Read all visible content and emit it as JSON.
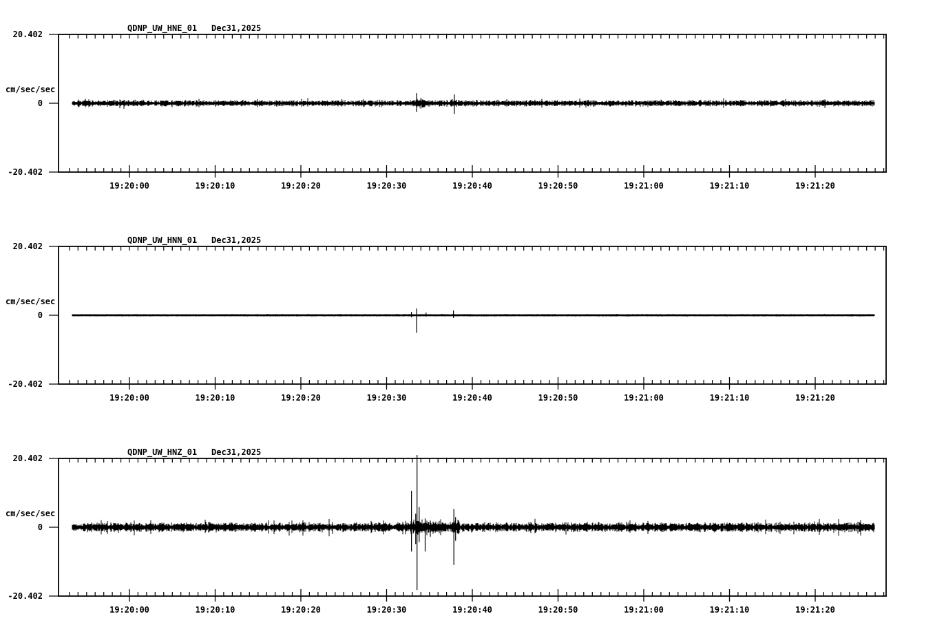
{
  "app": {
    "background": "#ffffff",
    "ink": "#000000"
  },
  "chart_data": {
    "type": "line",
    "kind": "seismogram-traces",
    "date_label": "Dec31,2025",
    "ylabel": "cm/sec/sec",
    "ylim": [
      -20.402,
      20.402
    ],
    "y_tick_labels": [
      "20.402",
      "0",
      "-20.402"
    ],
    "x_tick_labels": [
      "19:20:00",
      "19:20:10",
      "19:20:20",
      "19:20:30",
      "19:20:40",
      "19:20:50",
      "19:21:00",
      "19:21:10",
      "19:21:20"
    ],
    "x_major_interval_sec": 10,
    "x_minor_interval_sec": 1,
    "trace_start_sec": -6.7,
    "trace_end_sec": 86.9,
    "panels": [
      {
        "station": "QDNP_UW_HNE_01",
        "noise_amp": 0.32,
        "flat": false,
        "bursts": [
          {
            "start": 33.0,
            "end": 35.0,
            "factor": 1.5
          },
          {
            "start": 37.4,
            "end": 38.6,
            "factor": 1.4
          }
        ],
        "spikes": [
          {
            "t": 33.5,
            "up": 1.5,
            "down": 1.3
          },
          {
            "t": 34.0,
            "up": 0.8,
            "down": 0.8
          },
          {
            "t": 37.9,
            "up": 1.3,
            "down": 1.6
          }
        ]
      },
      {
        "station": "QDNP_UW_HNN_01",
        "noise_amp": 0.22,
        "flat": true,
        "bursts": [],
        "spikes": [
          {
            "t": 32.9,
            "up": 0.5,
            "down": 0.3
          },
          {
            "t": 33.5,
            "up": 1.0,
            "down": 2.6
          },
          {
            "t": 34.6,
            "up": 0.4,
            "down": 0.2
          },
          {
            "t": 37.8,
            "up": 0.7,
            "down": 0.4
          }
        ]
      },
      {
        "station": "QDNP_UW_HNZ_01",
        "noise_amp": 0.48,
        "flat": false,
        "bursts": [
          {
            "start": 32.8,
            "end": 36.5,
            "factor": 1.6
          },
          {
            "start": 37.4,
            "end": 38.6,
            "factor": 1.5
          }
        ],
        "spikes": [
          {
            "t": 32.9,
            "up": 5.4,
            "down": 3.6
          },
          {
            "t": 33.4,
            "up": 2.0,
            "down": 2.5
          },
          {
            "t": 33.55,
            "up": 21.2,
            "down": 9.3
          },
          {
            "t": 33.8,
            "up": 3.0,
            "down": 2.2
          },
          {
            "t": 34.5,
            "up": 1.3,
            "down": 3.6
          },
          {
            "t": 35.1,
            "up": 1.0,
            "down": 1.4
          },
          {
            "t": 37.85,
            "up": 2.7,
            "down": 5.6
          },
          {
            "t": 38.05,
            "up": 1.5,
            "down": 2.0
          }
        ]
      }
    ]
  }
}
